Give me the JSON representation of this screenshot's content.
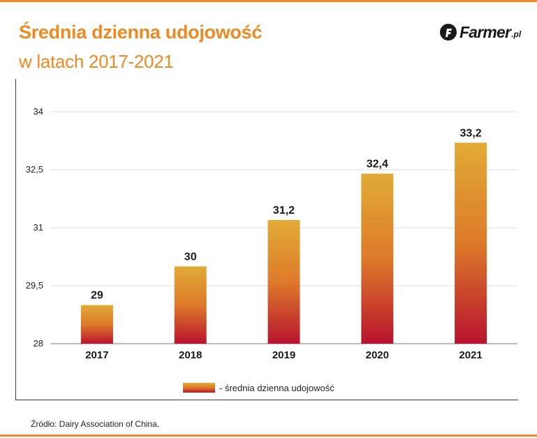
{
  "title": "Średnia dzienna udojowość",
  "subtitle": "w latach 2017-2021",
  "logo": {
    "text": "Farmer",
    "suffix": ".pl",
    "icon": "farmer-logo-icon"
  },
  "colors": {
    "accent": "#ef8a22",
    "bar_top": "#e2ab36",
    "bar_mid": "#dd7a2a",
    "bar_bottom": "#b8132e",
    "text": "#222222"
  },
  "legend": {
    "label": "- średnia dzienna udojowość"
  },
  "source": "Źródło: Dairy Association of China.",
  "chart_data": {
    "type": "bar",
    "title": "Średnia dzienna udojowość",
    "subtitle": "w latach 2017-2021",
    "categories": [
      "2017",
      "2018",
      "2019",
      "2020",
      "2021"
    ],
    "values": [
      29,
      30,
      31.2,
      32.4,
      33.2
    ],
    "data_labels": [
      "29",
      "30",
      "31,2",
      "32,4",
      "33,2"
    ],
    "series": [
      {
        "name": "- średnia dzienna udojowość",
        "values": [
          29,
          30,
          31.2,
          32.4,
          33.2
        ]
      }
    ],
    "ylim": [
      28,
      34
    ],
    "yticks": [
      28,
      29.5,
      31,
      32.5,
      34
    ],
    "ytick_labels": [
      "28",
      "29,5",
      "31",
      "32,5",
      "34"
    ],
    "xlabel": "",
    "ylabel": "",
    "grid": true,
    "legend_position": "bottom-center"
  }
}
